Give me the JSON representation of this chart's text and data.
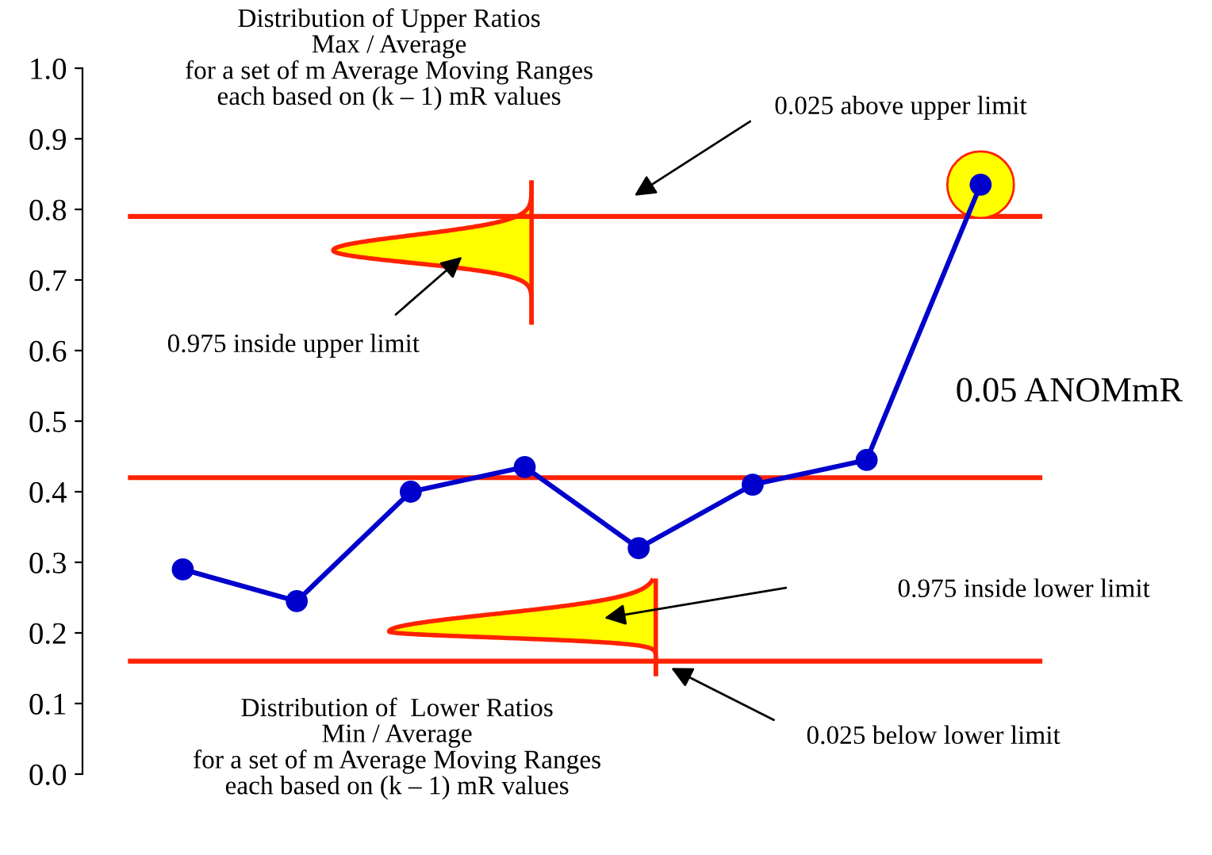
{
  "chart_data": {
    "type": "line",
    "categories": [
      null,
      null,
      null,
      null,
      null,
      null,
      null,
      null
    ],
    "series": [
      {
        "color": "#0000cc",
        "values": [
          0.29,
          0.245,
          0.4,
          0.435,
          0.32,
          0.41,
          0.445,
          0.835
        ]
      }
    ],
    "marker": "circle",
    "line_style": "solid",
    "grid": false,
    "legend": false,
    "tick_labels": "y",
    "ylim": [
      0.0,
      1.0
    ],
    "yticks": [
      {
        "value": 0.0,
        "label": "0.0"
      },
      0.1,
      0.2,
      0.3,
      0.4,
      0.5,
      0.6,
      0.7,
      0.8,
      0.9,
      {
        "value": 1.0,
        "label": "1.0"
      }
    ],
    "ref_lines": [
      {
        "axis": "y",
        "value": 0.79,
        "color": "#ff2200"
      },
      {
        "axis": "y",
        "value": 0.42,
        "color": "#ff2200"
      },
      {
        "axis": "y",
        "value": 0.16,
        "color": "#ff2200"
      }
    ],
    "annotations": [
      "Distribution of Upper Ratios\nMax / Average\nfor a set of m Average Moving Ranges\neach based on (k – 1) mR values",
      "0.025 above upper limit",
      "0.975 inside upper limit",
      "0.05 ANOMmR",
      "0.975 inside lower limit",
      "Distribution of  Lower Ratios\nMin / Average\nfor a set of m Average Moving Ranges\neach based on (k – 1) mR values",
      "0.025 below lower limit"
    ]
  }
}
